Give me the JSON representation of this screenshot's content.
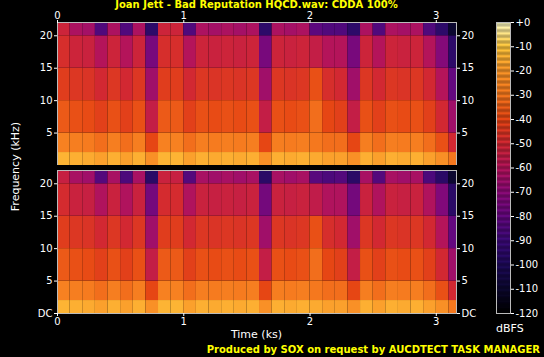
{
  "chart_data": {
    "type": "heatmap",
    "title": "Joan Jett - Bad Reputation HQCD.wav: CDDA 100%",
    "caption": "Produced by SOX on request by AUCDTECT TASK MANAGER",
    "xlabel": "Time (ks)",
    "ylabel": "Frequency (kHz)",
    "xlim": [
      0,
      3.16
    ],
    "xticks": [
      0,
      1,
      2,
      3
    ],
    "ylim": [
      0,
      22.05
    ],
    "time_edges": [
      0,
      0.1,
      0.2,
      0.3,
      0.4,
      0.5,
      0.6,
      0.7,
      0.8,
      0.9,
      1.0,
      1.1,
      1.2,
      1.3,
      1.4,
      1.5,
      1.6,
      1.7,
      1.8,
      1.9,
      2.0,
      2.1,
      2.2,
      2.3,
      2.4,
      2.5,
      2.6,
      2.7,
      2.8,
      2.9,
      3.0,
      3.1,
      3.16
    ],
    "frequency_edges": [
      0,
      2,
      5,
      10,
      15,
      20,
      22.05
    ],
    "channels": [
      {
        "yticks": [
          5,
          10,
          15,
          20
        ],
        "cells": [
          [
            -14,
            -15,
            -16,
            -18,
            -15,
            -18,
            -15,
            -22,
            -14,
            -14,
            -18,
            -15,
            -16,
            -15,
            -16,
            -15,
            -22,
            -15,
            -16,
            -15,
            -16,
            -18,
            -18,
            -22,
            -15,
            -18,
            -15,
            -16,
            -15,
            -18,
            -22,
            -30
          ],
          [
            -27,
            -28,
            -29,
            -32,
            -28,
            -32,
            -28,
            -40,
            -27,
            -27,
            -32,
            -28,
            -29,
            -28,
            -29,
            -28,
            -40,
            -28,
            -29,
            -28,
            -30,
            -32,
            -32,
            -40,
            -28,
            -32,
            -28,
            -29,
            -28,
            -32,
            -38,
            -50
          ],
          [
            -36,
            -38,
            -39,
            -42,
            -38,
            -42,
            -38,
            -55,
            -36,
            -36,
            -42,
            -38,
            -39,
            -38,
            -39,
            -38,
            -55,
            -38,
            -39,
            -38,
            -32,
            -40,
            -42,
            -55,
            -38,
            -42,
            -38,
            -39,
            -38,
            -42,
            -50,
            -65
          ],
          [
            -43,
            -45,
            -46,
            -50,
            -45,
            -50,
            -45,
            -65,
            -43,
            -43,
            -50,
            -45,
            -46,
            -45,
            -46,
            -45,
            -65,
            -45,
            -46,
            -45,
            -38,
            -48,
            -50,
            -65,
            -45,
            -50,
            -45,
            -46,
            -45,
            -50,
            -60,
            -80
          ],
          [
            -48,
            -52,
            -53,
            -60,
            -52,
            -60,
            -52,
            -75,
            -48,
            -48,
            -60,
            -52,
            -53,
            -52,
            -53,
            -52,
            -75,
            -52,
            -53,
            -52,
            -55,
            -60,
            -60,
            -75,
            -52,
            -60,
            -52,
            -53,
            -52,
            -60,
            -72,
            -95
          ],
          [
            -52,
            -62,
            -64,
            -85,
            -62,
            -85,
            -62,
            -95,
            -52,
            -52,
            -85,
            -62,
            -64,
            -62,
            -64,
            -62,
            -95,
            -62,
            -64,
            -62,
            -82,
            -85,
            -85,
            -95,
            -62,
            -85,
            -62,
            -64,
            -62,
            -85,
            -95,
            -110
          ]
        ]
      },
      {
        "yticks": [
          {
            "value": 0,
            "label": "DC"
          },
          5,
          10,
          15,
          20
        ],
        "cells": [
          [
            -14,
            -15,
            -16,
            -18,
            -15,
            -18,
            -15,
            -22,
            -14,
            -14,
            -18,
            -15,
            -16,
            -15,
            -16,
            -15,
            -22,
            -15,
            -16,
            -15,
            -16,
            -18,
            -18,
            -22,
            -15,
            -18,
            -15,
            -16,
            -15,
            -18,
            -22,
            -30
          ],
          [
            -27,
            -28,
            -29,
            -32,
            -28,
            -32,
            -28,
            -40,
            -27,
            -27,
            -32,
            -28,
            -29,
            -28,
            -29,
            -28,
            -40,
            -28,
            -29,
            -28,
            -30,
            -32,
            -32,
            -40,
            -28,
            -32,
            -28,
            -29,
            -28,
            -32,
            -38,
            -50
          ],
          [
            -36,
            -38,
            -39,
            -42,
            -38,
            -42,
            -38,
            -55,
            -36,
            -36,
            -42,
            -38,
            -39,
            -38,
            -39,
            -38,
            -55,
            -38,
            -39,
            -38,
            -32,
            -40,
            -42,
            -55,
            -38,
            -42,
            -38,
            -39,
            -38,
            -42,
            -50,
            -65
          ],
          [
            -43,
            -45,
            -46,
            -50,
            -45,
            -50,
            -45,
            -65,
            -43,
            -43,
            -50,
            -45,
            -46,
            -45,
            -46,
            -45,
            -65,
            -45,
            -46,
            -45,
            -38,
            -48,
            -50,
            -65,
            -45,
            -50,
            -45,
            -46,
            -45,
            -50,
            -60,
            -80
          ],
          [
            -49,
            -53,
            -54,
            -61,
            -53,
            -61,
            -53,
            -76,
            -49,
            -49,
            -61,
            -53,
            -54,
            -53,
            -54,
            -53,
            -76,
            -53,
            -54,
            -53,
            -56,
            -61,
            -61,
            -76,
            -53,
            -61,
            -53,
            -54,
            -53,
            -61,
            -73,
            -96
          ],
          [
            -54,
            -63,
            -65,
            -84,
            -63,
            -86,
            -63,
            -96,
            -53,
            -54,
            -84,
            -63,
            -65,
            -63,
            -65,
            -63,
            -96,
            -63,
            -65,
            -63,
            -83,
            -86,
            -84,
            -96,
            -63,
            -84,
            -63,
            -65,
            -63,
            -86,
            -96,
            -110
          ]
        ]
      }
    ],
    "colorbar": {
      "label": "dBFS",
      "range": [
        -120,
        0
      ],
      "ticks": [
        {
          "value": 0,
          "label": "+0"
        },
        -10,
        -20,
        -30,
        -40,
        -50,
        -60,
        -70,
        -80,
        -90,
        -100,
        -110,
        -120
      ]
    }
  }
}
